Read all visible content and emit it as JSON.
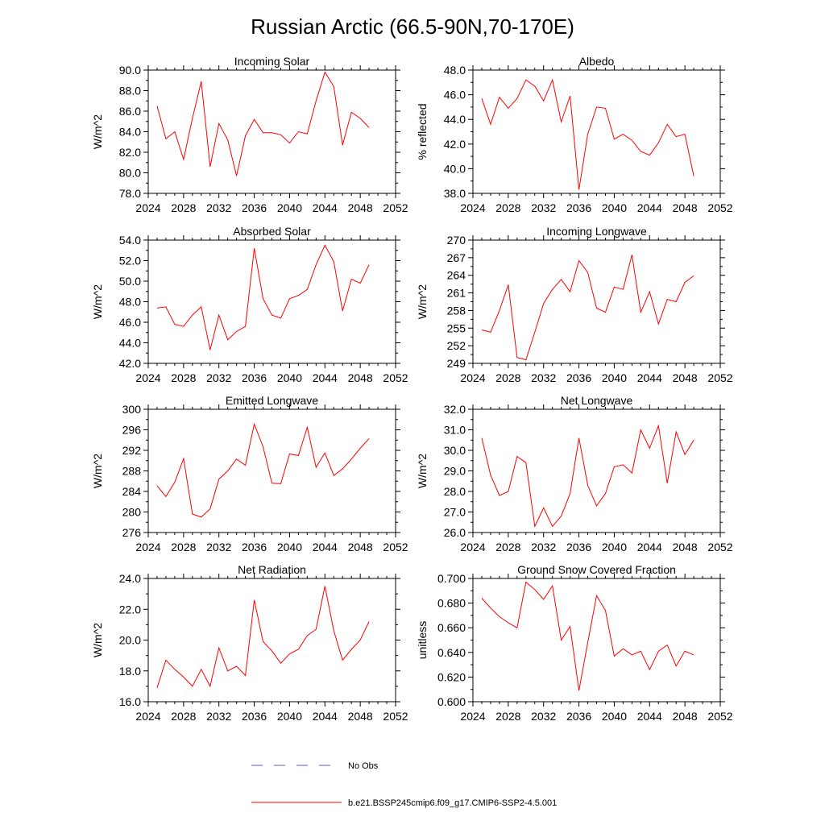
{
  "title": "Russian Arctic (66.5-90N,70-170E)",
  "legend": {
    "obs_label": "No Obs",
    "obs_color": "#5b5bd6",
    "model_label": "b.e21.BSSP245cmip6.f09_g17.CMIP6-SSP2-4.5.001",
    "model_color": "#ff0000"
  },
  "chart_data": [
    {
      "type": "line",
      "title": "Incoming Solar",
      "xlabel": "",
      "ylabel": "W/m^2",
      "xlim": [
        2024,
        2052
      ],
      "ylim": [
        78,
        90
      ],
      "xticks": [
        "2024",
        "2028",
        "2032",
        "2036",
        "2040",
        "2044",
        "2048",
        "2052"
      ],
      "yticks": [
        "78.0",
        "80.0",
        "82.0",
        "84.0",
        "86.0",
        "88.0",
        "90.0"
      ],
      "x": [
        2025,
        2026,
        2027,
        2028,
        2029,
        2030,
        2031,
        2032,
        2033,
        2034,
        2035,
        2036,
        2037,
        2038,
        2039,
        2040,
        2041,
        2042,
        2043,
        2044,
        2045,
        2046,
        2047,
        2048,
        2049
      ],
      "series": [
        {
          "values": [
            86.5,
            83.3,
            84.0,
            81.3,
            85.3,
            88.9,
            80.6,
            84.8,
            83.2,
            79.7,
            83.6,
            85.2,
            83.9,
            83.9,
            83.7,
            82.9,
            84.0,
            83.8,
            87.0,
            89.8,
            88.4,
            82.7,
            85.9,
            85.3,
            84.4
          ]
        }
      ]
    },
    {
      "type": "line",
      "title": "Albedo",
      "xlabel": "",
      "ylabel": "% reflected",
      "xlim": [
        2024,
        2052
      ],
      "ylim": [
        38,
        48
      ],
      "xticks": [
        "2024",
        "2028",
        "2032",
        "2036",
        "2040",
        "2044",
        "2048",
        "2052"
      ],
      "yticks": [
        "38.0",
        "40.0",
        "42.0",
        "44.0",
        "46.0",
        "48.0"
      ],
      "x": [
        2025,
        2026,
        2027,
        2028,
        2029,
        2030,
        2031,
        2032,
        2033,
        2034,
        2035,
        2036,
        2037,
        2038,
        2039,
        2040,
        2041,
        2042,
        2043,
        2044,
        2045,
        2046,
        2047,
        2048,
        2049
      ],
      "series": [
        {
          "values": [
            45.7,
            43.6,
            45.8,
            44.9,
            45.7,
            47.2,
            46.7,
            45.5,
            47.2,
            43.8,
            45.9,
            38.3,
            42.8,
            45.0,
            44.9,
            42.4,
            42.8,
            42.3,
            41.4,
            41.1,
            42.1,
            43.6,
            42.6,
            42.8,
            39.4
          ]
        }
      ]
    },
    {
      "type": "line",
      "title": "Absorbed Solar",
      "xlabel": "",
      "ylabel": "W/m^2",
      "xlim": [
        2024,
        2052
      ],
      "ylim": [
        42,
        54
      ],
      "xticks": [
        "2024",
        "2028",
        "2032",
        "2036",
        "2040",
        "2044",
        "2048",
        "2052"
      ],
      "yticks": [
        "42.0",
        "44.0",
        "46.0",
        "48.0",
        "50.0",
        "52.0",
        "54.0"
      ],
      "x": [
        2025,
        2026,
        2027,
        2028,
        2029,
        2030,
        2031,
        2032,
        2033,
        2034,
        2035,
        2036,
        2037,
        2038,
        2039,
        2040,
        2041,
        2042,
        2043,
        2044,
        2045,
        2046,
        2047,
        2048,
        2049
      ],
      "series": [
        {
          "values": [
            47.4,
            47.5,
            45.8,
            45.6,
            46.7,
            47.5,
            43.3,
            46.7,
            44.3,
            45.1,
            45.6,
            53.2,
            48.3,
            46.7,
            46.4,
            48.3,
            48.6,
            49.2,
            51.6,
            53.5,
            51.9,
            47.1,
            50.2,
            49.8,
            51.6
          ]
        }
      ]
    },
    {
      "type": "line",
      "title": "Incoming Longwave",
      "xlabel": "",
      "ylabel": "W/m^2",
      "xlim": [
        2024,
        2052
      ],
      "ylim": [
        249,
        270
      ],
      "xticks": [
        "2024",
        "2028",
        "2032",
        "2036",
        "2040",
        "2044",
        "2048",
        "2052"
      ],
      "yticks": [
        "249",
        "252",
        "255",
        "258",
        "261",
        "264",
        "267",
        "270"
      ],
      "x": [
        2025,
        2026,
        2027,
        2028,
        2029,
        2030,
        2031,
        2032,
        2033,
        2034,
        2035,
        2036,
        2037,
        2038,
        2039,
        2040,
        2041,
        2042,
        2043,
        2044,
        2045,
        2046,
        2047,
        2048,
        2049
      ],
      "series": [
        {
          "values": [
            254.7,
            254.3,
            258.0,
            262.4,
            250.0,
            249.6,
            254.3,
            259.2,
            261.6,
            263.3,
            261.2,
            266.5,
            264.5,
            258.4,
            257.7,
            262.0,
            261.6,
            267.5,
            257.7,
            261.2,
            255.7,
            259.9,
            259.5,
            262.8,
            263.9
          ]
        }
      ]
    },
    {
      "type": "line",
      "title": "Emitted Longwave",
      "xlabel": "",
      "ylabel": "W/m^2",
      "xlim": [
        2024,
        2052
      ],
      "ylim": [
        276,
        300
      ],
      "xticks": [
        "2024",
        "2028",
        "2032",
        "2036",
        "2040",
        "2044",
        "2048",
        "2052"
      ],
      "yticks": [
        "276",
        "280",
        "284",
        "288",
        "292",
        "296",
        "300"
      ],
      "x": [
        2025,
        2026,
        2027,
        2028,
        2029,
        2030,
        2031,
        2032,
        2033,
        2034,
        2035,
        2036,
        2037,
        2038,
        2039,
        2040,
        2041,
        2042,
        2043,
        2044,
        2045,
        2046,
        2047,
        2048,
        2049
      ],
      "series": [
        {
          "values": [
            285.1,
            283.0,
            285.8,
            290.4,
            279.6,
            279.0,
            280.6,
            286.4,
            288.0,
            290.3,
            289.1,
            297.1,
            292.7,
            285.6,
            285.5,
            291.3,
            291.0,
            296.5,
            288.7,
            291.5,
            287.1,
            288.4,
            290.3,
            292.4,
            294.3
          ]
        }
      ]
    },
    {
      "type": "line",
      "title": "Net Longwave",
      "xlabel": "",
      "ylabel": "W/m^2",
      "xlim": [
        2024,
        2052
      ],
      "ylim": [
        26,
        32
      ],
      "xticks": [
        "2024",
        "2028",
        "2032",
        "2036",
        "2040",
        "2044",
        "2048",
        "2052"
      ],
      "yticks": [
        "26.0",
        "27.0",
        "28.0",
        "29.0",
        "30.0",
        "31.0",
        "32.0"
      ],
      "x": [
        2025,
        2026,
        2027,
        2028,
        2029,
        2030,
        2031,
        2032,
        2033,
        2034,
        2035,
        2036,
        2037,
        2038,
        2039,
        2040,
        2041,
        2042,
        2043,
        2044,
        2045,
        2046,
        2047,
        2048,
        2049
      ],
      "series": [
        {
          "values": [
            30.6,
            28.8,
            27.8,
            28.0,
            29.7,
            29.4,
            26.3,
            27.2,
            26.3,
            26.8,
            27.9,
            30.6,
            28.3,
            27.3,
            27.9,
            29.2,
            29.3,
            28.9,
            31.0,
            30.1,
            31.2,
            28.4,
            30.9,
            29.8,
            30.5
          ]
        }
      ]
    },
    {
      "type": "line",
      "title": "Net Radiation",
      "xlabel": "",
      "ylabel": "W/m^2",
      "xlim": [
        2024,
        2052
      ],
      "ylim": [
        16,
        24
      ],
      "xticks": [
        "2024",
        "2028",
        "2032",
        "2036",
        "2040",
        "2044",
        "2048",
        "2052"
      ],
      "yticks": [
        "16.0",
        "18.0",
        "20.0",
        "22.0",
        "24.0"
      ],
      "x": [
        2025,
        2026,
        2027,
        2028,
        2029,
        2030,
        2031,
        2032,
        2033,
        2034,
        2035,
        2036,
        2037,
        2038,
        2039,
        2040,
        2041,
        2042,
        2043,
        2044,
        2045,
        2046,
        2047,
        2048,
        2049
      ],
      "series": [
        {
          "values": [
            16.9,
            18.7,
            18.1,
            17.6,
            17.0,
            18.1,
            17.0,
            19.5,
            18.0,
            18.3,
            17.7,
            22.6,
            19.9,
            19.3,
            18.5,
            19.1,
            19.4,
            20.3,
            20.7,
            23.5,
            20.6,
            18.7,
            19.4,
            20.0,
            21.2
          ]
        }
      ]
    },
    {
      "type": "line",
      "title": "Ground Snow Covered Fraction",
      "xlabel": "",
      "ylabel": "unitless",
      "xlim": [
        2024,
        2052
      ],
      "ylim": [
        0.6,
        0.7
      ],
      "xticks": [
        "2024",
        "2028",
        "2032",
        "2036",
        "2040",
        "2044",
        "2048",
        "2052"
      ],
      "yticks": [
        "0.600",
        "0.620",
        "0.640",
        "0.660",
        "0.680",
        "0.700"
      ],
      "x": [
        2025,
        2026,
        2027,
        2028,
        2029,
        2030,
        2031,
        2032,
        2033,
        2034,
        2035,
        2036,
        2037,
        2038,
        2039,
        2040,
        2041,
        2042,
        2043,
        2044,
        2045,
        2046,
        2047,
        2048,
        2049
      ],
      "series": [
        {
          "values": [
            0.684,
            0.676,
            0.669,
            0.664,
            0.66,
            0.697,
            0.691,
            0.683,
            0.694,
            0.65,
            0.661,
            0.609,
            0.648,
            0.686,
            0.674,
            0.637,
            0.643,
            0.638,
            0.641,
            0.626,
            0.641,
            0.646,
            0.629,
            0.641,
            0.638
          ]
        }
      ]
    }
  ]
}
